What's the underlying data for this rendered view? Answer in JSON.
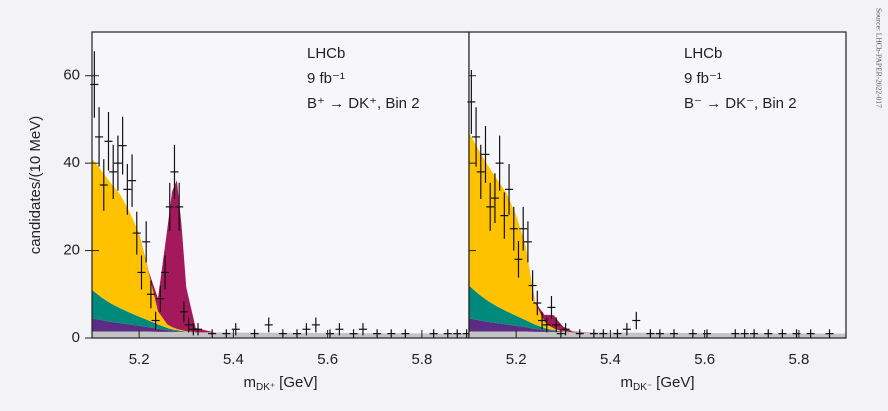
{
  "source": "Source: LHCb-PAPER-2022-017",
  "chart_data": [
    {
      "type": "area",
      "stacked": true,
      "ylabel": "candidates/(10 MeV)",
      "xlabel": [
        "m",
        "DK⁺",
        "[GeV]"
      ],
      "annotations": [
        "LHCb",
        "9 fb⁻¹",
        "B⁺ → DK⁺, Bin 2"
      ],
      "xlim": [
        5.1,
        5.9
      ],
      "xticks": [
        5.2,
        5.4,
        5.6,
        5.8
      ],
      "ylim": [
        0,
        70
      ],
      "yticks": [
        0,
        20,
        40,
        60
      ],
      "x": [
        5.1,
        5.12,
        5.14,
        5.16,
        5.18,
        5.2,
        5.22,
        5.24,
        5.26,
        5.27,
        5.28,
        5.29,
        5.3,
        5.32,
        5.36,
        5.5,
        5.7,
        5.9
      ],
      "series": [
        {
          "color": "#c4c4c4",
          "values": [
            1.5,
            1.5,
            1.5,
            1.5,
            1.5,
            1.5,
            1.5,
            1.4,
            1.4,
            1.4,
            1.4,
            1.4,
            1.4,
            1.3,
            1.3,
            1.2,
            1.1,
            1.0
          ]
        },
        {
          "color": "#5b2c83",
          "values": [
            3,
            2.6,
            2.2,
            1.9,
            1.6,
            1.3,
            1,
            0.7,
            0.4,
            0.3,
            0.2,
            0.1,
            0.05,
            0,
            0,
            0,
            0,
            0
          ]
        },
        {
          "color": "#008a7c",
          "values": [
            6.5,
            5.2,
            4.2,
            3.4,
            2.7,
            2.1,
            1.5,
            1,
            0.5,
            0.3,
            0.2,
            0.1,
            0.05,
            0,
            0,
            0,
            0,
            0
          ]
        },
        {
          "color": "#ffc200",
          "values": [
            30,
            29,
            27.5,
            26,
            23,
            19,
            11,
            3,
            0.8,
            0.5,
            0.3,
            0.2,
            0.1,
            0,
            0,
            0,
            0,
            0
          ]
        },
        {
          "color": "#a3195b",
          "values": [
            0,
            0,
            0,
            0,
            0,
            0,
            0.3,
            3,
            22,
            31,
            34,
            24,
            10,
            1,
            0,
            0,
            0,
            0
          ]
        }
      ],
      "points": {
        "color": "#111111",
        "x": [
          5.105,
          5.115,
          5.125,
          5.135,
          5.145,
          5.155,
          5.165,
          5.175,
          5.185,
          5.195,
          5.205,
          5.215,
          5.225,
          5.235,
          5.245,
          5.255,
          5.265,
          5.275,
          5.285,
          5.295,
          5.305,
          5.315,
          5.325,
          5.355,
          5.385,
          5.405,
          5.445,
          5.475,
          5.505,
          5.535,
          5.555,
          5.575,
          5.605,
          5.625,
          5.655,
          5.675,
          5.705,
          5.735,
          5.765,
          5.825,
          5.855,
          5.875,
          5.895
        ],
        "values": [
          58,
          46,
          35,
          45,
          38,
          40,
          44,
          34,
          36,
          24,
          15,
          22,
          10,
          4,
          9,
          15,
          30,
          38,
          30,
          6,
          3,
          2,
          2,
          1,
          1,
          2,
          1,
          3,
          1,
          1,
          2,
          3,
          1,
          2,
          1,
          2,
          1,
          1,
          1,
          1,
          1,
          1,
          1
        ],
        "errors": [
          7.6,
          6.8,
          5.9,
          6.7,
          6.2,
          6.3,
          6.6,
          5.8,
          6,
          4.9,
          3.9,
          4.7,
          3.2,
          2,
          3,
          3.9,
          5.5,
          6.2,
          5.5,
          2.4,
          1.7,
          1.4,
          1.4,
          1,
          1,
          1.4,
          1,
          1.7,
          1,
          1,
          1.4,
          1.7,
          1,
          1.4,
          1,
          1.4,
          1,
          1,
          1,
          1,
          1,
          1,
          1
        ]
      }
    },
    {
      "type": "area",
      "stacked": true,
      "xlabel": [
        "m",
        "DK⁻",
        "[GeV]"
      ],
      "annotations": [
        "LHCb",
        "9 fb⁻¹",
        "B⁻ → DK⁻, Bin 2"
      ],
      "xlim": [
        5.1,
        5.9
      ],
      "xticks": [
        5.2,
        5.4,
        5.6,
        5.8
      ],
      "ylim": [
        0,
        70
      ],
      "yticks": [
        0,
        20,
        40,
        60
      ],
      "x": [
        5.1,
        5.12,
        5.14,
        5.16,
        5.18,
        5.2,
        5.22,
        5.24,
        5.26,
        5.27,
        5.28,
        5.29,
        5.3,
        5.32,
        5.36,
        5.5,
        5.7,
        5.9
      ],
      "series": [
        {
          "color": "#c4c4c4",
          "values": [
            1.5,
            1.5,
            1.5,
            1.5,
            1.5,
            1.5,
            1.5,
            1.4,
            1.4,
            1.4,
            1.4,
            1.4,
            1.4,
            1.3,
            1.3,
            1.2,
            1.1,
            1.0
          ]
        },
        {
          "color": "#5b2c83",
          "values": [
            3,
            2.6,
            2.2,
            1.9,
            1.6,
            1.3,
            1,
            0.7,
            0.4,
            0.3,
            0.2,
            0.1,
            0.05,
            0,
            0,
            0,
            0,
            0
          ]
        },
        {
          "color": "#008a7c",
          "values": [
            7.5,
            6,
            4.8,
            3.8,
            3,
            2.3,
            1.6,
            1,
            0.5,
            0.3,
            0.2,
            0.1,
            0.05,
            0,
            0,
            0,
            0,
            0
          ]
        },
        {
          "color": "#ffc200",
          "values": [
            35,
            33,
            31,
            29,
            27,
            23,
            17,
            5,
            1.5,
            0.8,
            0.4,
            0.2,
            0.1,
            0,
            0,
            0,
            0,
            0
          ]
        },
        {
          "color": "#a3195b",
          "values": [
            0,
            0,
            0,
            0,
            0,
            0,
            0,
            0.2,
            1.5,
            2.5,
            3,
            2,
            1,
            0.2,
            0,
            0,
            0,
            0
          ]
        }
      ],
      "points": {
        "color": "#111111",
        "x": [
          5.105,
          5.115,
          5.125,
          5.135,
          5.145,
          5.155,
          5.165,
          5.175,
          5.185,
          5.195,
          5.205,
          5.215,
          5.225,
          5.235,
          5.245,
          5.255,
          5.265,
          5.275,
          5.285,
          5.295,
          5.305,
          5.335,
          5.365,
          5.385,
          5.415,
          5.435,
          5.455,
          5.485,
          5.505,
          5.535,
          5.575,
          5.605,
          5.665,
          5.685,
          5.705,
          5.735,
          5.765,
          5.795,
          5.825,
          5.865
        ],
        "values": [
          54,
          46,
          38,
          42,
          30,
          32,
          40,
          28,
          34,
          25,
          18,
          25,
          22,
          12,
          8,
          4,
          3,
          7,
          3,
          1,
          2,
          1,
          1,
          1,
          1,
          2,
          4,
          1,
          1,
          1,
          1,
          1,
          1,
          1,
          1,
          1,
          1,
          1,
          1,
          1
        ],
        "errors": [
          7.3,
          6.8,
          6.2,
          6.5,
          5.5,
          5.7,
          6.3,
          5.3,
          5.8,
          5,
          4.2,
          5,
          4.7,
          3.5,
          2.8,
          2,
          1.7,
          2.6,
          1.7,
          1,
          1.4,
          1,
          1,
          1,
          1,
          1.4,
          2,
          1,
          1,
          1,
          1,
          1,
          1,
          1,
          1,
          1,
          1,
          1,
          1,
          1
        ]
      }
    }
  ]
}
